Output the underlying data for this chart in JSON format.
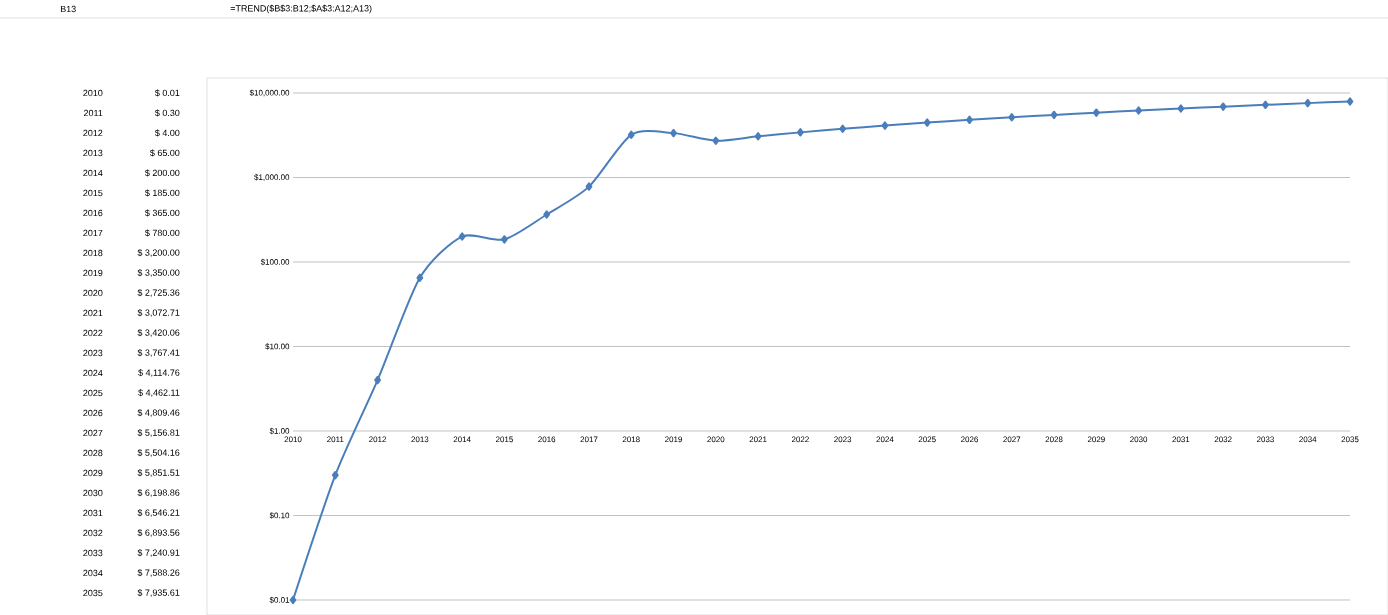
{
  "chart_data": {
    "type": "line",
    "annotations": [
      "B13",
      "=TREND($B$3:B12;$A$3:A12;A13)",
      "2010",
      "$ 0.01",
      "2011",
      "$ 0.30",
      "2012",
      "$ 4.00",
      "2013",
      "$ 65.00",
      "2014",
      "$ 200.00",
      "2015",
      "$ 185.00",
      "2016",
      "$ 365.00",
      "2017",
      "$ 780.00",
      "2018",
      "$ 3,200.00",
      "2019",
      "$ 3,350.00",
      "2020",
      "$ 2,725.36",
      "2021",
      "$ 3,072.71",
      "2022",
      "$ 3,420.06",
      "2023",
      "$ 3,767.41",
      "2024",
      "$ 4,114.76",
      "2025",
      "$ 4,462.11",
      "2026",
      "$ 4,809.46",
      "2027",
      "$ 5,156.81",
      "2028",
      "$ 5,504.16",
      "2029",
      "$ 5,851.51",
      "2030",
      "$ 6,198.86",
      "2031",
      "$ 6,546.21",
      "2032",
      "$ 6,893.56",
      "2033",
      "$ 7,240.91",
      "2034",
      "$ 7,588.26",
      "2035",
      "$ 7,935.61"
    ],
    "x": [
      2010,
      2011,
      2012,
      2013,
      2014,
      2015,
      2016,
      2017,
      2018,
      2019,
      2020,
      2021,
      2022,
      2023,
      2024,
      2025,
      2026,
      2027,
      2028,
      2029,
      2030,
      2031,
      2032,
      2033,
      2034,
      2035
    ],
    "values": [
      0.01,
      0.3,
      4.0,
      65.0,
      200.0,
      185.0,
      365.0,
      780.0,
      3200.0,
      3350.0,
      2725.36,
      3072.71,
      3420.06,
      3767.41,
      4114.76,
      4462.11,
      4809.46,
      5156.81,
      5504.16,
      5851.51,
      6198.86,
      6546.21,
      6893.56,
      7240.91,
      7588.26,
      7935.61
    ],
    "color": "#4a7ebb",
    "marker": "diamond",
    "log": "y",
    "grid": "y",
    "xlim": [
      2010,
      2035
    ],
    "xticks": [
      2010,
      2011,
      2012,
      2013,
      2014,
      2015,
      2016,
      2017,
      2018,
      2019,
      2020,
      2021,
      2022,
      2023,
      2024,
      2025,
      2026,
      2027,
      2028,
      2029,
      2030,
      2031,
      2032,
      2033,
      2034,
      2035
    ],
    "ylim": [
      0.01,
      10000
    ],
    "yticks": [
      {
        "value": 0.01,
        "label": "$0.01"
      },
      {
        "value": 0.1,
        "label": "$0.10"
      },
      {
        "value": 1,
        "label": "$1.00"
      },
      {
        "value": 10,
        "label": "$10.00"
      },
      {
        "value": 100,
        "label": "$100.00"
      },
      {
        "value": 1000,
        "label": "$1,000.00"
      },
      {
        "value": 10000,
        "label": "$10,000.00"
      }
    ]
  }
}
